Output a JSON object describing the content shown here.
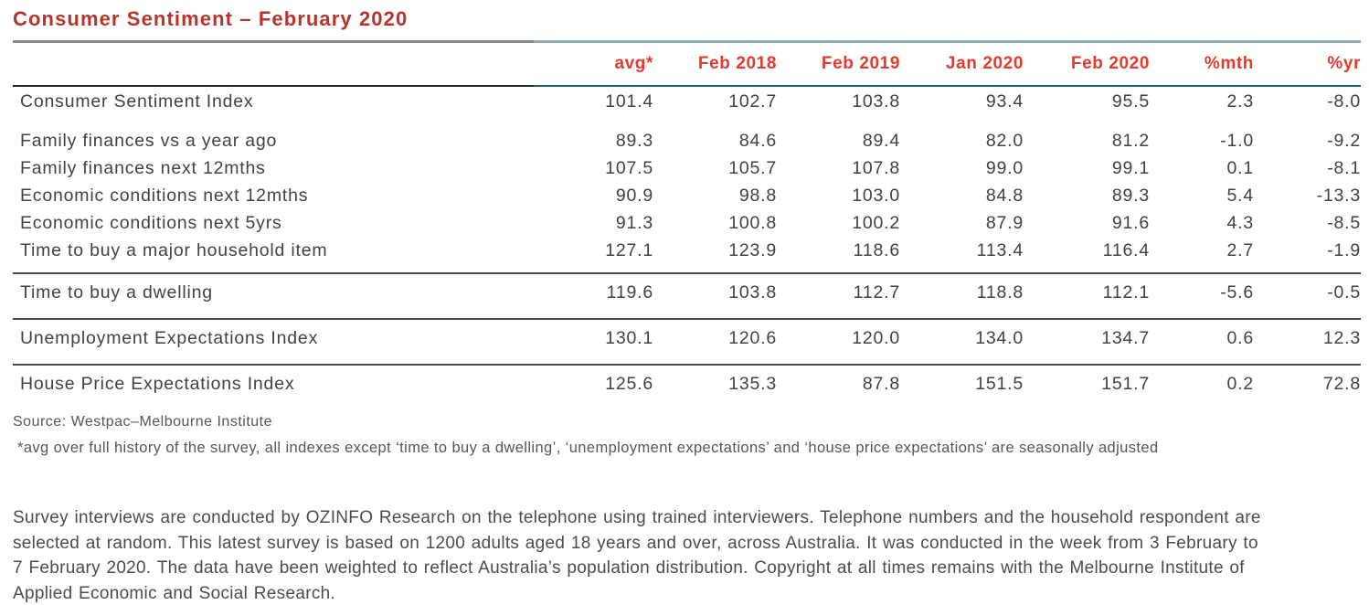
{
  "title": "Consumer Sentiment – February 2020",
  "table": {
    "columns": [
      "avg*",
      "Feb 2018",
      "Feb 2019",
      "Jan 2020",
      "Feb 2020",
      "%mth",
      "%yr"
    ],
    "groups": [
      {
        "rows": [
          {
            "label": "Consumer Sentiment Index",
            "values": [
              "101.4",
              "102.7",
              "103.8",
              "93.4",
              "95.5",
              "2.3",
              "-8.0"
            ]
          }
        ]
      },
      {
        "rows": [
          {
            "label": "Family finances vs a year ago",
            "values": [
              "89.3",
              "84.6",
              "89.4",
              "82.0",
              "81.2",
              "-1.0",
              "-9.2"
            ]
          },
          {
            "label": "Family finances next 12mths",
            "values": [
              "107.5",
              "105.7",
              "107.8",
              "99.0",
              "99.1",
              "0.1",
              "-8.1"
            ]
          },
          {
            "label": "Economic conditions next 12mths",
            "values": [
              "90.9",
              "98.8",
              "103.0",
              "84.8",
              "89.3",
              "5.4",
              "-13.3"
            ]
          },
          {
            "label": "Economic conditions next 5yrs",
            "values": [
              "91.3",
              "100.8",
              "100.2",
              "87.9",
              "91.6",
              "4.3",
              "-8.5"
            ]
          },
          {
            "label": "Time to buy a major household item",
            "values": [
              "127.1",
              "123.9",
              "118.6",
              "113.4",
              "116.4",
              "2.7",
              "-1.9"
            ]
          }
        ]
      },
      {
        "rows": [
          {
            "label": "Time to buy a dwelling",
            "values": [
              "119.6",
              "103.8",
              "112.7",
              "118.8",
              "112.1",
              "-5.6",
              "-0.5"
            ]
          }
        ]
      },
      {
        "rows": [
          {
            "label": "Unemployment Expectations Index",
            "values": [
              "130.1",
              "120.6",
              "120.0",
              "134.0",
              "134.7",
              "0.6",
              "12.3"
            ]
          }
        ]
      },
      {
        "rows": [
          {
            "label": "House Price Expectations Index",
            "values": [
              "125.6",
              "135.3",
              "87.8",
              "151.5",
              "151.7",
              "0.2",
              "72.8"
            ]
          }
        ]
      }
    ]
  },
  "source": "Source: Westpac–Melbourne Institute",
  "footnote": "*avg over full history of the survey, all indexes except ‘time to buy a dwelling’, ‘unemployment expectations’ and ‘house price expectations’ are seasonally adjusted",
  "paragraph_lines": [
    "Survey interviews are conducted by OZINFO Research on the telephone using trained interviewers. Telephone numbers and the household respondent are",
    "selected at random. This latest survey is based on 1200 adults aged 18 years and over, across Australia. It was conducted in the week from 3 February to",
    "7 February 2020. The data have been weighted to reflect Australia’s population distribution. Copyright at all times remains with the Melbourne Institute of",
    "Applied Economic and Social Research."
  ],
  "colors": {
    "title_red": "#b5342c",
    "header_red": "#e63a2e",
    "rule_gray": "#8b8b8b",
    "rule_teal_light": "#8fb0ae",
    "rule_black": "#262222",
    "rule_teal_dark": "#1f615c",
    "separator_gray": "#48494b",
    "body_text": "#414244",
    "note_text": "#545659"
  },
  "chart_data": {
    "type": "table",
    "title": "Consumer Sentiment – February 2020",
    "columns": [
      "",
      "avg*",
      "Feb 2018",
      "Feb 2019",
      "Jan 2020",
      "Feb 2020",
      "%mth",
      "%yr"
    ],
    "rows": [
      [
        "Consumer Sentiment Index",
        101.4,
        102.7,
        103.8,
        93.4,
        95.5,
        2.3,
        -8.0
      ],
      [
        "Family finances vs a year ago",
        89.3,
        84.6,
        89.4,
        82.0,
        81.2,
        -1.0,
        -9.2
      ],
      [
        "Family finances next 12mths",
        107.5,
        105.7,
        107.8,
        99.0,
        99.1,
        0.1,
        -8.1
      ],
      [
        "Economic conditions next 12mths",
        90.9,
        98.8,
        103.0,
        84.8,
        89.3,
        5.4,
        -13.3
      ],
      [
        "Economic conditions next 5yrs",
        91.3,
        100.8,
        100.2,
        87.9,
        91.6,
        4.3,
        -8.5
      ],
      [
        "Time to buy a major household item",
        127.1,
        123.9,
        118.6,
        113.4,
        116.4,
        2.7,
        -1.9
      ],
      [
        "Time to buy a dwelling",
        119.6,
        103.8,
        112.7,
        118.8,
        112.1,
        -5.6,
        -0.5
      ],
      [
        "Unemployment Expectations Index",
        130.1,
        120.6,
        120.0,
        134.0,
        134.7,
        0.6,
        12.3
      ],
      [
        "House Price Expectations Index",
        125.6,
        135.3,
        87.8,
        151.5,
        151.7,
        0.2,
        72.8
      ]
    ],
    "source": "Source: Westpac–Melbourne Institute"
  }
}
